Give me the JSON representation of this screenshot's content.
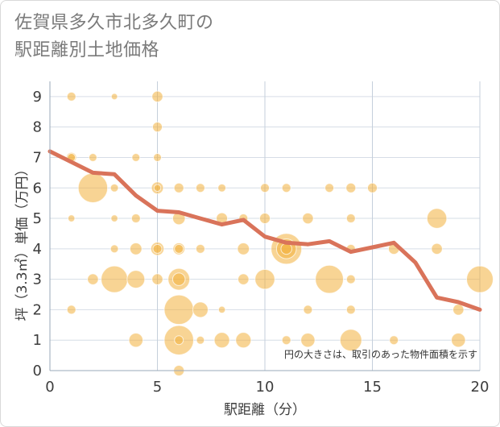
{
  "chart_data": {
    "type": "scatter",
    "title_line1": "佐賀県多久市北多久町の",
    "title_line2": "駅距離別土地価格",
    "xlabel": "駅距離（分）",
    "ylabel": "坪（3.3㎡）単価（万円）",
    "note": "円の大きさは、取引のあった物件面積を示す",
    "xlim": [
      0,
      20
    ],
    "ylim": [
      0,
      9.5
    ],
    "x_ticks": [
      0,
      5,
      10,
      15,
      20
    ],
    "y_ticks": [
      0,
      1,
      2,
      3,
      4,
      5,
      6,
      7,
      8,
      9
    ],
    "grid": true,
    "bubble_color": "#f2b13c",
    "line_color": "#d9735a",
    "bubbles": [
      {
        "x": 1,
        "y": 9,
        "s": 1
      },
      {
        "x": 3,
        "y": 9,
        "s": 0.5
      },
      {
        "x": 5,
        "y": 9,
        "s": 1.5
      },
      {
        "x": 5,
        "y": 8,
        "s": 1.2
      },
      {
        "x": 1,
        "y": 7,
        "s": 1.3
      },
      {
        "x": 1,
        "y": 7,
        "s": 0.8
      },
      {
        "x": 2,
        "y": 7,
        "s": 0.8
      },
      {
        "x": 4,
        "y": 7,
        "s": 0.8
      },
      {
        "x": 5,
        "y": 7,
        "s": 0.8
      },
      {
        "x": 2,
        "y": 6,
        "s": 11
      },
      {
        "x": 3,
        "y": 6,
        "s": 0.8
      },
      {
        "x": 5,
        "y": 6,
        "s": 1.8
      },
      {
        "x": 5,
        "y": 6,
        "s": 0.6
      },
      {
        "x": 6,
        "y": 6,
        "s": 1.2
      },
      {
        "x": 7,
        "y": 6,
        "s": 1
      },
      {
        "x": 8,
        "y": 6,
        "s": 0.8
      },
      {
        "x": 10,
        "y": 6,
        "s": 1
      },
      {
        "x": 11,
        "y": 6,
        "s": 1
      },
      {
        "x": 13,
        "y": 6,
        "s": 1
      },
      {
        "x": 14,
        "y": 6,
        "s": 1.2
      },
      {
        "x": 15,
        "y": 6,
        "s": 1.2
      },
      {
        "x": 1,
        "y": 5,
        "s": 0.6
      },
      {
        "x": 3,
        "y": 5,
        "s": 0.6
      },
      {
        "x": 4,
        "y": 5,
        "s": 1
      },
      {
        "x": 6,
        "y": 5,
        "s": 2
      },
      {
        "x": 8,
        "y": 5,
        "s": 1.6
      },
      {
        "x": 9,
        "y": 5,
        "s": 1
      },
      {
        "x": 10,
        "y": 5,
        "s": 1.4
      },
      {
        "x": 12,
        "y": 5,
        "s": 1.5
      },
      {
        "x": 14,
        "y": 5,
        "s": 1
      },
      {
        "x": 18,
        "y": 5,
        "s": 5
      },
      {
        "x": 3,
        "y": 4,
        "s": 0.8
      },
      {
        "x": 4,
        "y": 4,
        "s": 1.8
      },
      {
        "x": 5,
        "y": 4,
        "s": 2.2
      },
      {
        "x": 5,
        "y": 4,
        "s": 1
      },
      {
        "x": 6,
        "y": 4,
        "s": 1.8
      },
      {
        "x": 6,
        "y": 4,
        "s": 1
      },
      {
        "x": 7,
        "y": 4,
        "s": 1
      },
      {
        "x": 9,
        "y": 4,
        "s": 1.8
      },
      {
        "x": 11,
        "y": 4,
        "s": 12
      },
      {
        "x": 11,
        "y": 4,
        "s": 5
      },
      {
        "x": 11,
        "y": 4,
        "s": 1.5
      },
      {
        "x": 14,
        "y": 4,
        "s": 1
      },
      {
        "x": 16,
        "y": 4,
        "s": 1.5
      },
      {
        "x": 18,
        "y": 4,
        "s": 1.5
      },
      {
        "x": 2,
        "y": 3,
        "s": 1.5
      },
      {
        "x": 3,
        "y": 3,
        "s": 9
      },
      {
        "x": 4,
        "y": 3,
        "s": 4
      },
      {
        "x": 5,
        "y": 3,
        "s": 1.5
      },
      {
        "x": 6,
        "y": 3,
        "s": 6
      },
      {
        "x": 6,
        "y": 3,
        "s": 2
      },
      {
        "x": 9,
        "y": 3,
        "s": 1.5
      },
      {
        "x": 10,
        "y": 3,
        "s": 5
      },
      {
        "x": 13,
        "y": 3,
        "s": 10
      },
      {
        "x": 14,
        "y": 3,
        "s": 1
      },
      {
        "x": 20,
        "y": 3,
        "s": 9
      },
      {
        "x": 1,
        "y": 2,
        "s": 1
      },
      {
        "x": 6,
        "y": 2,
        "s": 11
      },
      {
        "x": 7,
        "y": 2,
        "s": 3
      },
      {
        "x": 8,
        "y": 2,
        "s": 0.6
      },
      {
        "x": 12,
        "y": 2,
        "s": 1
      },
      {
        "x": 14,
        "y": 2,
        "s": 1
      },
      {
        "x": 19,
        "y": 2,
        "s": 1.5
      },
      {
        "x": 4,
        "y": 1,
        "s": 2.5
      },
      {
        "x": 6,
        "y": 1,
        "s": 11
      },
      {
        "x": 6,
        "y": 1,
        "s": 1
      },
      {
        "x": 7,
        "y": 1,
        "s": 0.8
      },
      {
        "x": 8,
        "y": 1,
        "s": 3
      },
      {
        "x": 9,
        "y": 1,
        "s": 3
      },
      {
        "x": 11,
        "y": 1,
        "s": 1
      },
      {
        "x": 12,
        "y": 1,
        "s": 2.5
      },
      {
        "x": 14,
        "y": 1,
        "s": 6
      },
      {
        "x": 16,
        "y": 1,
        "s": 1
      },
      {
        "x": 19,
        "y": 1,
        "s": 2.5
      },
      {
        "x": 6,
        "y": 0,
        "s": 1.4
      }
    ],
    "series": [
      {
        "type": "line",
        "x": [
          0,
          1,
          2,
          3,
          4,
          5,
          6,
          7,
          8,
          9,
          10,
          11,
          12,
          13,
          14,
          15,
          16,
          17,
          18,
          19,
          20
        ],
        "values": [
          7.2,
          6.85,
          6.5,
          6.45,
          5.75,
          5.25,
          5.2,
          5.0,
          4.8,
          4.95,
          4.4,
          4.2,
          4.15,
          4.25,
          3.9,
          4.05,
          4.2,
          3.55,
          2.4,
          2.25,
          2.0
        ]
      }
    ]
  }
}
